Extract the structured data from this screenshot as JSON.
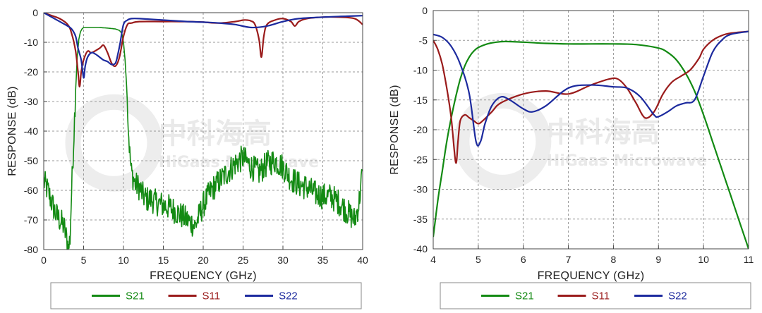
{
  "colors": {
    "S21": "#138a13",
    "S11": "#9a1b1b",
    "S22": "#1c2a9e"
  },
  "watermark": {
    "cn": "中科海高",
    "en": "HiGaas Microwave"
  },
  "chart_data": [
    {
      "type": "line",
      "xlabel": "FREQUENCY (GHz)",
      "ylabel": "RESPONSE (dB)",
      "xlim": [
        0,
        40
      ],
      "ylim": [
        -80,
        0
      ],
      "xticks": [
        0,
        5,
        10,
        15,
        20,
        25,
        30,
        35,
        40
      ],
      "yticks": [
        0,
        -10,
        -20,
        -30,
        -40,
        -50,
        -60,
        -70,
        -80
      ],
      "grid": true,
      "legend": "bottom",
      "series": [
        {
          "name": "S21",
          "color": "#138a13",
          "noisy": true,
          "x": [
            0,
            0.5,
            1,
            1.5,
            2,
            2.5,
            3,
            3.1,
            3.3,
            3.5,
            3.8,
            4.0,
            4.2,
            4.4,
            4.6,
            4.8,
            5.0,
            5.5,
            6,
            7,
            8,
            9,
            9.5,
            9.8,
            10,
            10.2,
            10.4,
            10.6,
            10.8,
            11,
            11.5,
            12,
            12.5,
            13,
            13.5,
            14,
            15,
            16,
            17,
            18,
            19,
            20,
            21,
            22,
            23,
            24,
            25,
            26,
            27,
            28,
            29,
            30,
            31,
            32,
            33,
            34,
            35,
            36,
            37,
            38,
            39,
            39.5,
            40
          ],
          "y": [
            -57,
            -60,
            -64,
            -68,
            -70,
            -72,
            -78,
            -80,
            -76,
            -60,
            -40,
            -26,
            -15,
            -9,
            -6.5,
            -5.5,
            -5,
            -5,
            -5,
            -5,
            -5.2,
            -5.5,
            -6,
            -7,
            -10,
            -16,
            -25,
            -38,
            -48,
            -54,
            -58,
            -59,
            -62,
            -63,
            -63,
            -64,
            -65,
            -66,
            -68,
            -70,
            -72,
            -65,
            -60,
            -57,
            -54,
            -51,
            -49,
            -52,
            -54,
            -51,
            -50,
            -52,
            -56,
            -58,
            -59,
            -61,
            -62,
            -62,
            -64,
            -67,
            -70,
            -65,
            -53
          ]
        },
        {
          "name": "S11",
          "color": "#9a1b1b",
          "noisy": false,
          "x": [
            0,
            1,
            2,
            3,
            3.5,
            4,
            4.3,
            4.5,
            4.7,
            5,
            5.5,
            6,
            7,
            7.5,
            8,
            8.5,
            9,
            9.5,
            10,
            10.5,
            11,
            12,
            15,
            18,
            20,
            22,
            24,
            25,
            25.5,
            26,
            26.5,
            27,
            27.3,
            27.6,
            28,
            29,
            30,
            31,
            31.5,
            32,
            33,
            35,
            37,
            39,
            40
          ],
          "y": [
            0,
            -1,
            -2,
            -4,
            -7,
            -13,
            -20,
            -25,
            -20,
            -16,
            -13,
            -13.5,
            -12,
            -11,
            -13.5,
            -17,
            -18,
            -15,
            -8,
            -4,
            -3.5,
            -3,
            -3,
            -3,
            -3.2,
            -3.5,
            -3,
            -2.5,
            -2.5,
            -2.8,
            -4,
            -9,
            -15,
            -8,
            -4,
            -2.5,
            -2,
            -3,
            -4.5,
            -3,
            -2,
            -1.5,
            -1.5,
            -2,
            -4
          ]
        },
        {
          "name": "S22",
          "color": "#1c2a9e",
          "noisy": false,
          "x": [
            0,
            1,
            2,
            3,
            3.5,
            4,
            4.3,
            4.7,
            5,
            5.2,
            5.5,
            6,
            6.5,
            7,
            7.5,
            8,
            8.5,
            9,
            9.3,
            9.6,
            10,
            10.5,
            11,
            12,
            15,
            18,
            20,
            22,
            24,
            26,
            28,
            30,
            32,
            35,
            38,
            40
          ],
          "y": [
            0,
            -1.5,
            -3,
            -4.5,
            -5.5,
            -8,
            -12,
            -16,
            -22,
            -18,
            -15,
            -13.5,
            -14,
            -15,
            -16,
            -16.5,
            -17.5,
            -17,
            -14,
            -10,
            -4,
            -2.5,
            -2,
            -2,
            -2.5,
            -3,
            -3.2,
            -3.5,
            -4,
            -5,
            -4.5,
            -3,
            -2,
            -1.5,
            -1.2,
            -1
          ]
        }
      ]
    },
    {
      "type": "line",
      "xlabel": "FREQUENCY (GHz)",
      "ylabel": "RESPONSE (dB)",
      "xlim": [
        4,
        11
      ],
      "ylim": [
        -40,
        0
      ],
      "xticks": [
        4,
        5,
        6,
        7,
        8,
        9,
        10,
        11
      ],
      "yticks": [
        0,
        -5,
        -10,
        -15,
        -20,
        -25,
        -30,
        -35,
        -40
      ],
      "grid": true,
      "legend": "bottom",
      "series": [
        {
          "name": "S21",
          "color": "#138a13",
          "noisy": false,
          "x": [
            4,
            4.1,
            4.2,
            4.3,
            4.4,
            4.5,
            4.6,
            4.7,
            4.8,
            4.9,
            5,
            5.2,
            5.4,
            5.6,
            6,
            6.5,
            7,
            7.5,
            8,
            8.5,
            9,
            9.2,
            9.4,
            9.6,
            9.8,
            10,
            10.2,
            10.4,
            10.6,
            10.8,
            11
          ],
          "y": [
            -38,
            -32,
            -27,
            -22,
            -18,
            -14.5,
            -11.5,
            -9.3,
            -7.8,
            -6.8,
            -6.2,
            -5.6,
            -5.3,
            -5.2,
            -5.3,
            -5.5,
            -5.6,
            -5.6,
            -5.6,
            -5.7,
            -6.3,
            -7,
            -8.3,
            -10.5,
            -13.5,
            -17.5,
            -22,
            -26.5,
            -31,
            -35.5,
            -40
          ]
        },
        {
          "name": "S11",
          "color": "#9a1b1b",
          "noisy": false,
          "x": [
            4,
            4.1,
            4.2,
            4.3,
            4.4,
            4.5,
            4.55,
            4.6,
            4.7,
            4.8,
            4.9,
            5,
            5.1,
            5.3,
            5.5,
            6,
            6.5,
            7,
            7.5,
            7.9,
            8.1,
            8.3,
            8.5,
            8.7,
            8.9,
            9.1,
            9.3,
            9.5,
            9.7,
            9.9,
            10,
            10.2,
            10.4,
            10.6,
            11
          ],
          "y": [
            -5,
            -6.5,
            -9,
            -13,
            -18,
            -25.5,
            -22,
            -18.5,
            -17.5,
            -18,
            -18.5,
            -19,
            -18.5,
            -17,
            -15.5,
            -14,
            -13.5,
            -14,
            -12.5,
            -11.5,
            -11.5,
            -13,
            -15.5,
            -18,
            -17,
            -14,
            -12,
            -11,
            -10,
            -8,
            -6.5,
            -5,
            -4.2,
            -3.8,
            -3.5
          ]
        },
        {
          "name": "S22",
          "color": "#1c2a9e",
          "noisy": false,
          "x": [
            4,
            4.2,
            4.4,
            4.6,
            4.8,
            4.95,
            5.05,
            5.15,
            5.3,
            5.5,
            5.7,
            6,
            6.2,
            6.5,
            7,
            7.5,
            8,
            8.3,
            8.6,
            8.9,
            9,
            9.2,
            9.4,
            9.6,
            9.8,
            10,
            10.2,
            10.4,
            10.6,
            11
          ],
          "y": [
            -4,
            -4.5,
            -6,
            -9,
            -14,
            -22,
            -22,
            -19,
            -16,
            -14.5,
            -15,
            -16.5,
            -17,
            -16,
            -13,
            -12.5,
            -12.8,
            -13,
            -14.5,
            -17.5,
            -17.8,
            -17,
            -16,
            -15.5,
            -15,
            -11,
            -7,
            -5,
            -4,
            -3.5
          ]
        }
      ]
    }
  ]
}
